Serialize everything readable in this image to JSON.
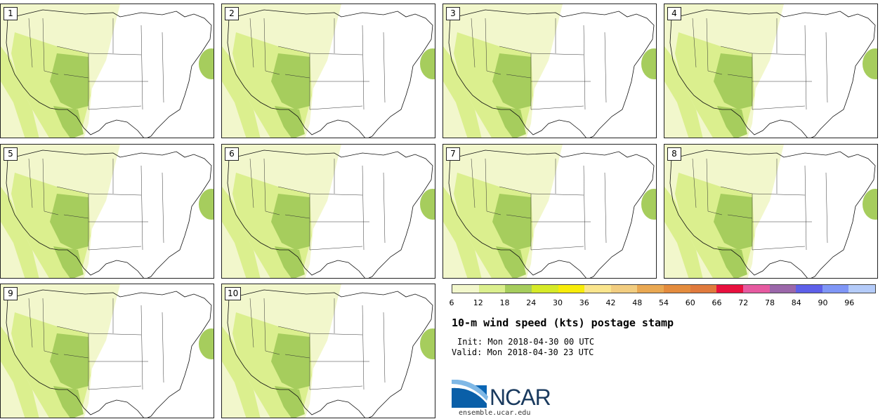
{
  "panels": [
    {
      "label": "1"
    },
    {
      "label": "2"
    },
    {
      "label": "3"
    },
    {
      "label": "4"
    },
    {
      "label": "5"
    },
    {
      "label": "6"
    },
    {
      "label": "7"
    },
    {
      "label": "8"
    },
    {
      "label": "9"
    },
    {
      "label": "10"
    }
  ],
  "colorbar": {
    "colors": [
      "#f2f7cc",
      "#dbef8e",
      "#a6cd5d",
      "#d6ea28",
      "#f7ec0a",
      "#fae58d",
      "#f2cd80",
      "#e9a852",
      "#e48c3e",
      "#e07a3d",
      "#e8103e",
      "#e65aa0",
      "#9b67aa",
      "#5e60e9",
      "#7f96f6",
      "#b4cbf9"
    ],
    "ticks": [
      "6",
      "12",
      "18",
      "24",
      "30",
      "36",
      "42",
      "48",
      "54",
      "60",
      "66",
      "72",
      "78",
      "84",
      "90",
      "96"
    ]
  },
  "title": "10-m wind speed (kts) postage stamp",
  "init": "Init: Mon 2018-04-30 00 UTC",
  "valid": "Valid: Mon 2018-04-30 23 UTC",
  "logo": {
    "text": "NCAR",
    "url": "ensemble.ucar.edu"
  }
}
